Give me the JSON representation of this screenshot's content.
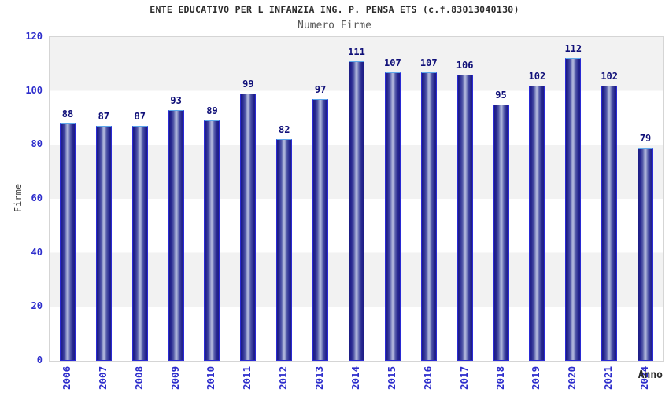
{
  "title": "ENTE EDUCATIVO PER L INFANZIA ING. P. PENSA ETS (c.f.83013040130)",
  "subtitle": "Numero Firme",
  "chart_data": {
    "type": "bar",
    "title": "ENTE EDUCATIVO PER L INFANZIA ING. P. PENSA ETS (c.f.83013040130)",
    "subtitle": "Numero Firme",
    "xlabel": "Anno",
    "ylabel": "Firme",
    "categories": [
      "2006",
      "2007",
      "2008",
      "2009",
      "2010",
      "2011",
      "2012",
      "2013",
      "2014",
      "2015",
      "2016",
      "2017",
      "2018",
      "2019",
      "2020",
      "2021",
      "2024"
    ],
    "values": [
      88,
      87,
      87,
      93,
      89,
      99,
      82,
      97,
      111,
      107,
      107,
      106,
      95,
      102,
      112,
      102,
      79
    ],
    "yticks": [
      0,
      20,
      40,
      60,
      80,
      100,
      120
    ],
    "ylim": [
      0,
      120
    ],
    "grid": "alternating-horizontal-bands",
    "legend": "none",
    "colors": {
      "bar_dark": "#1d1d84",
      "bar_light": "#b7bcdf",
      "bar_border": "#2a2ad4",
      "bar_border_top": "#5da6ea",
      "tick_label": "#2d2dcc",
      "value_label": "#0f0f78",
      "band_gray": "#f2f2f2",
      "plot_border": "#d5d5d5",
      "title_color": "#2b2b2b",
      "subtitle_color": "#595959"
    }
  }
}
